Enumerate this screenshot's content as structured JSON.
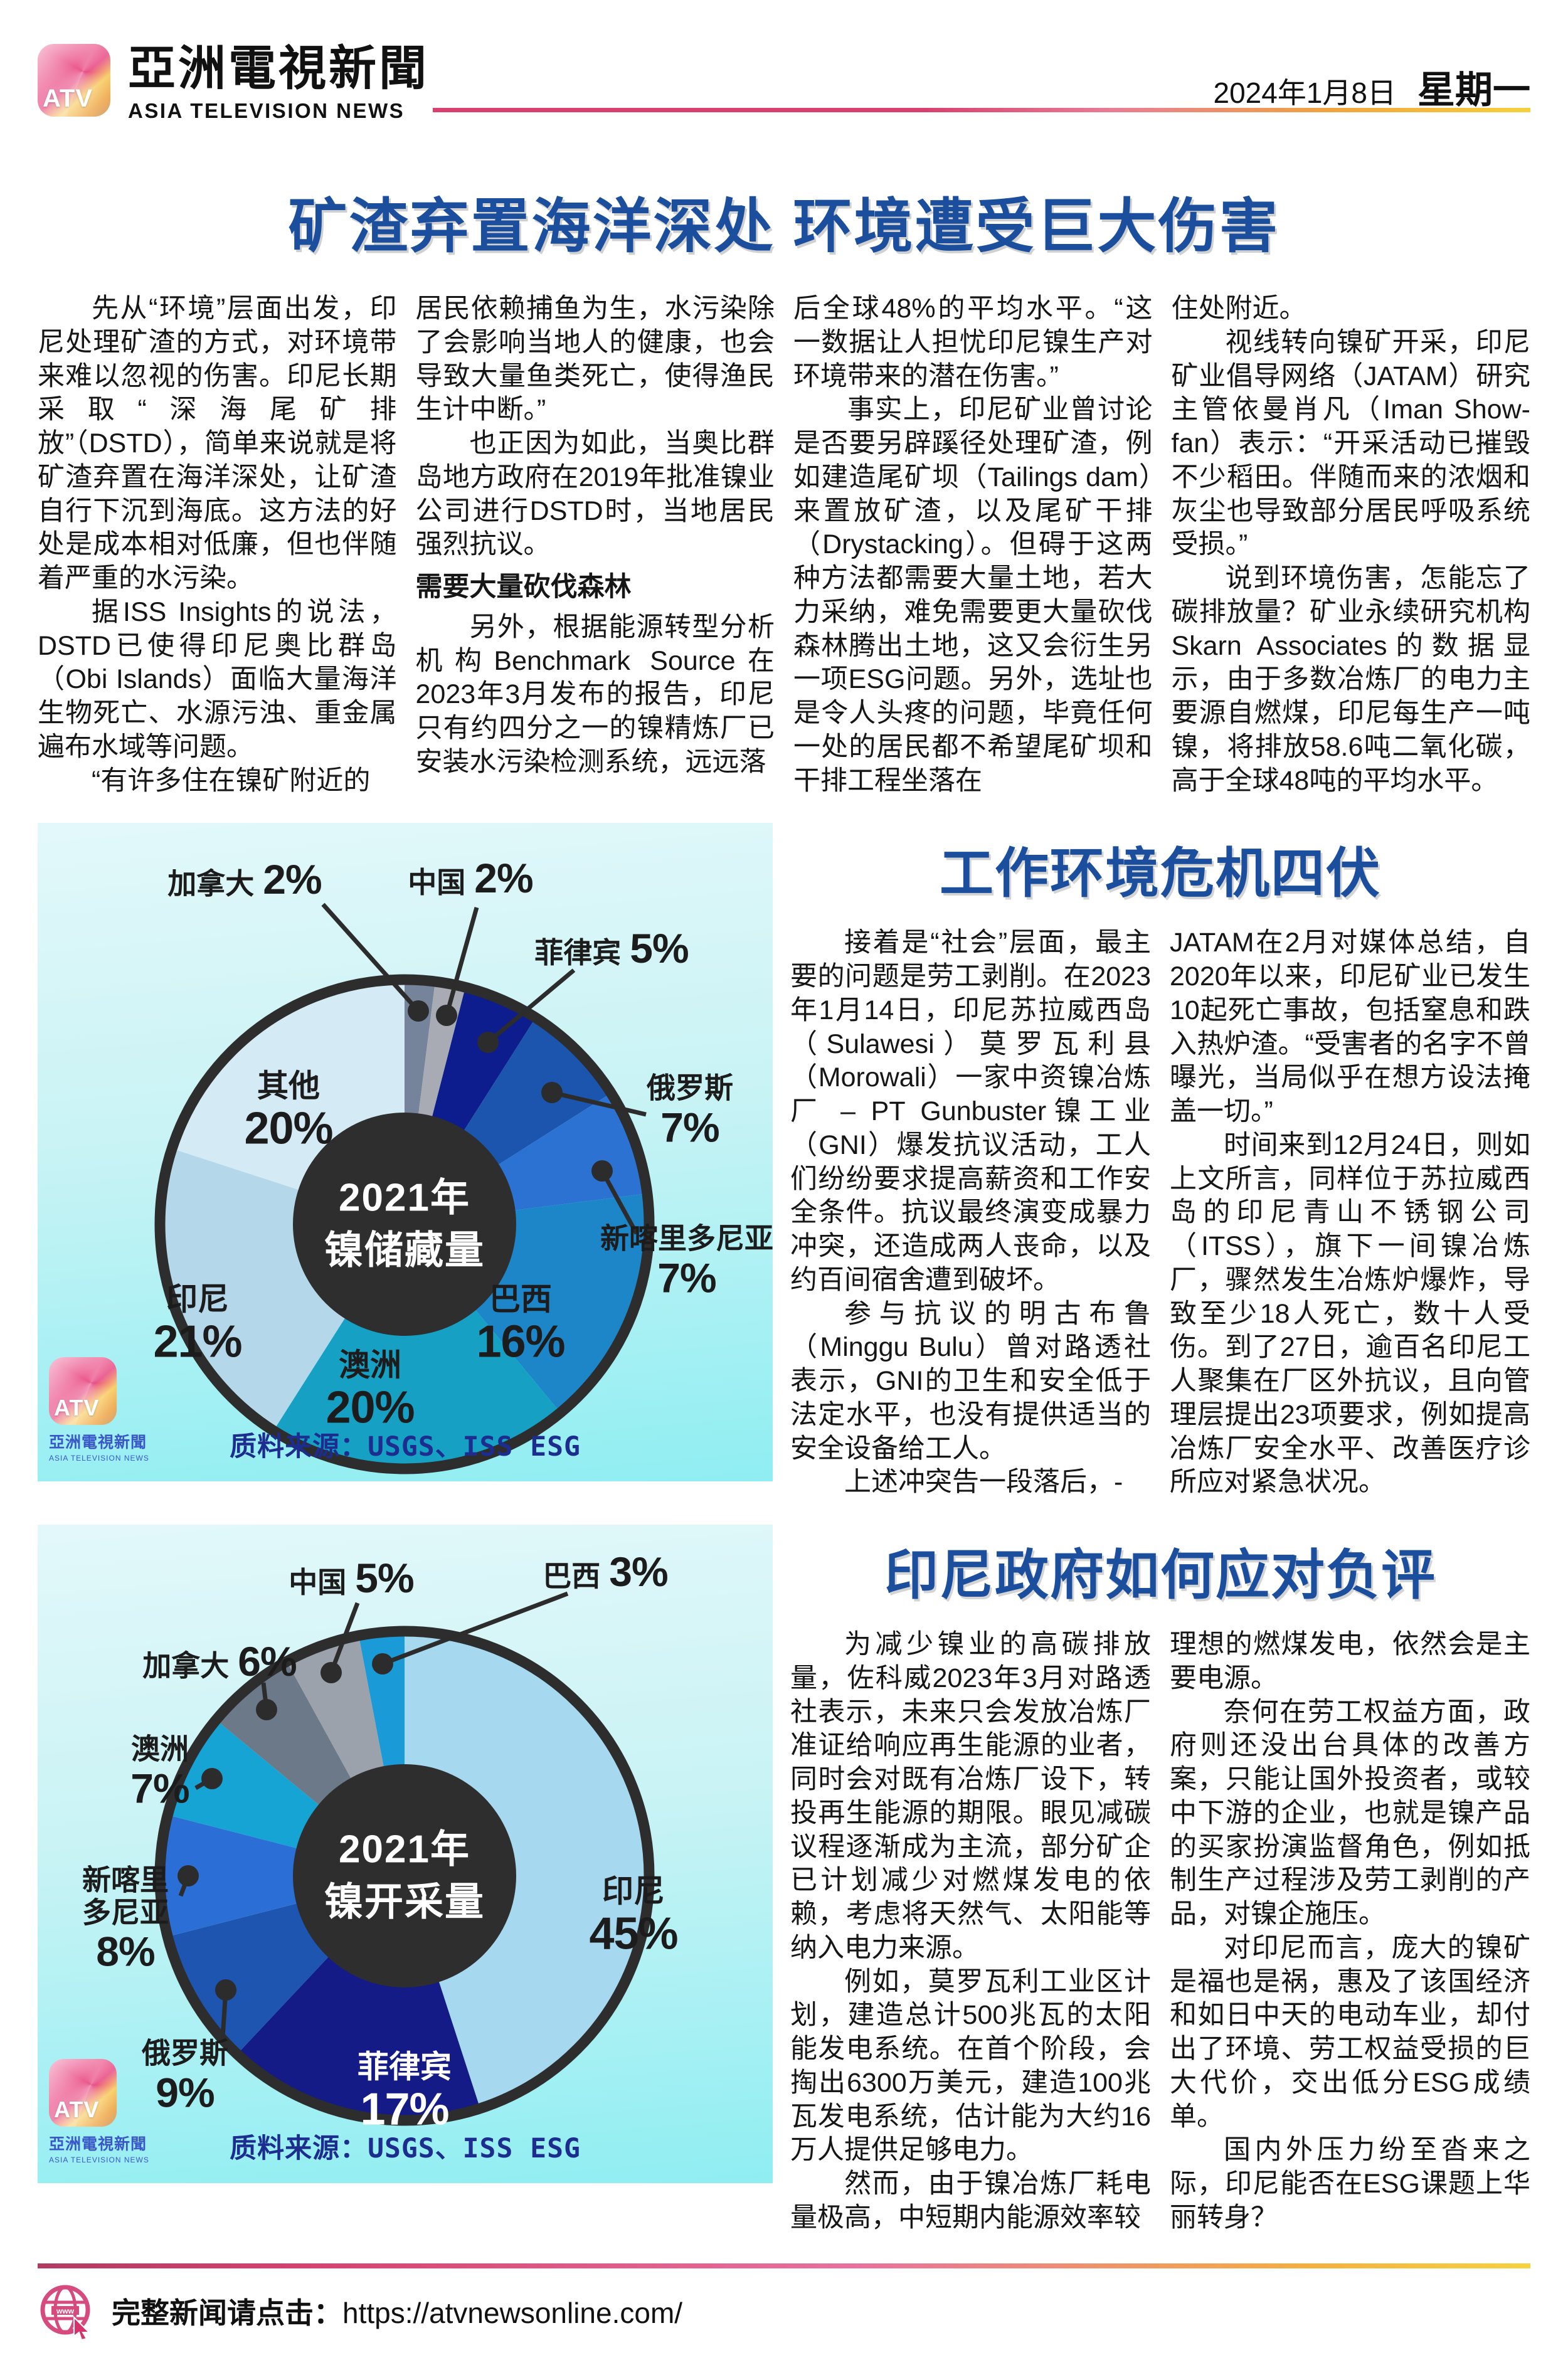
{
  "header": {
    "logo_text": "ATV",
    "brand_cn": "亞洲電視新聞",
    "brand_en": "ASIA TELEVISION NEWS",
    "date": "2024年1月8日",
    "weekday": "星期一"
  },
  "colors": {
    "headline_blue": "#1b4f9e",
    "subhead_blue": "#1a5cad",
    "source_blue": "#1c2d8f",
    "rule_pink": "#d8416f",
    "rule_yellow": "#f6d13c",
    "panel_cyan_top": "#e3f8fa",
    "panel_cyan_bottom": "#8feef2"
  },
  "article1": {
    "headline": "矿渣弃置海洋深处 环境遭受巨大伤害",
    "col1": [
      "先从“环境”层面出发，印尼处理矿渣的方式，对环境带来难以忽视的伤害。印尼长期采取“深海尾矿排放”（DSTD），简单来说就是将矿渣弃置在海洋深处，让矿渣自行下沉到海底。这方法的好处是成本相对低廉，但也伴随着严重的水污染。",
      "据ISS Insights的说法，DSTD已使得印尼奥比群岛（Obi Islands）面临大量海洋生物死亡、水源污浊、重金属遍布水域等问题。",
      "“有许多住在镍矿附近的"
    ],
    "col2_a": [
      "居民依赖捕鱼为生，水污染除了会影响当地人的健康，也会导致大量鱼类死亡，使得渔民生计中断。”",
      "也正因为如此，当奥比群岛地方政府在2019年批准镍业公司进行DSTD时，当地居民强烈抗议。"
    ],
    "col2_subhead": "需要大量砍伐森林",
    "col2_b": [
      "另外，根据能源转型分析机构Benchmark Source在2023年3月发布的报告，印尼只有约四分之一的镍精炼厂已安装水污染检测系统，远远落"
    ],
    "col3": [
      "后全球48%的平均水平。“这一数据让人担忧印尼镍生产对环境带来的潜在伤害。”",
      "事实上，印尼矿业曾讨论是否要另辟蹊径处理矿渣，例如建造尾矿坝（Tailings dam）来置放矿渣，以及尾矿干排（Drystacking）。但碍于这两种方法都需要大量土地，若大力采纳，难免需要更大量砍伐森林腾出土地，这又会衍生另一项ESG问题。另外，选址也是令人头疼的问题，毕竟任何一处的居民都不希望尾矿坝和干排工程坐落在"
    ],
    "col4": [
      "住处附近。",
      "视线转向镍矿开采，印尼矿业倡导网络（JATAM）研究主管依曼肖凡（Iman Show-fan）表示：“开采活动已摧毁不少稻田。伴随而来的浓烟和灰尘也导致部分居民呼吸系统受损。”",
      "说到环境伤害，怎能忘了碳排放量？矿业永续研究机构Skarn Associates的数据显示，由于多数冶炼厂的电力主要源自燃煤，印尼每生产一吨镍，将排放58.6吨二氧化碳，高于全球48吨的平均水平。"
    ]
  },
  "section2": {
    "headline": "工作环境危机四伏",
    "colA": [
      "接着是“社会”层面，最主要的问题是劳工剥削。在2023年1月14日，印尼苏拉威西岛（Sulawesi）莫罗瓦利县（Morowali）一家中资镍冶炼厂 – PT Gunbuster镍工业（GNI）爆发抗议活动，工人们纷纷要求提高薪资和工作安全条件。抗议最终演变成暴力冲突，还造成两人丧命，以及约百间宿舍遭到破坏。",
      "参与抗议的明古布鲁（Minggu Bulu）曾对路透社表示，GNI的卫生和安全低于法定水平，也没有提供适当的安全设备给工人。",
      "上述冲突告一段落后，-"
    ],
    "colB": [
      "JATAM在2月对媒体总结，自2020年以来，印尼矿业已发生10起死亡事故，包括窒息和跌入热炉渣。“受害者的名字不曾曝光，当局似乎在想方设法掩盖一切。”",
      "时间来到12月24日，则如上文所言，同样位于苏拉威西岛的印尼青山不锈钢公司（ITSS），旗下一间镍冶炼厂，骤然发生冶炼炉爆炸，导致至少18人死亡，数十人受伤。到了27日，逾百名印尼工人聚集在厂区外抗议，且向管理层提出23项要求，例如提高冶炼厂安全水平、改善医疗诊所应对紧急状况。"
    ]
  },
  "section3": {
    "headline": "印尼政府如何应对负评",
    "colA": [
      "为减少镍业的高碳排放量，佐科威2023年3月对路透社表示，未来只会发放冶炼厂准证给响应再生能源的业者，同时会对既有冶炼厂设下，转投再生能源的期限。眼见减碳议程逐渐成为主流，部分矿企已计划减少对燃煤发电的依赖，考虑将天然气、太阳能等纳入电力来源。",
      "例如，莫罗瓦利工业区计划，建造总计500兆瓦的太阳能发电系统。在首个阶段，会掏出6300万美元，建造100兆瓦发电系统，估计能为大约16万人提供足够电力。",
      "然而，由于镍冶炼厂耗电量极高，中短期内能源效率较"
    ],
    "colB": [
      "理想的燃煤发电，依然会是主要电源。",
      "奈何在劳工权益方面，政府则还没出台具体的改善方案，只能让国外投资者，或较中下游的企业，也就是镍产品的买家扮演监督角色，例如抵制生产过程涉及劳工剥削的产品，对镍企施压。",
      "对印尼而言，庞大的镍矿是福也是祸，惠及了该国经济和如日中天的电动车业，却付出了环境、劳工权益受损的巨大代价，交出低分ESG成绩单。",
      "国内外压力纷至沓来之际，印尼能否在ESG课题上华丽转身？"
    ]
  },
  "chart_data": [
    {
      "type": "pie",
      "title": "2021年",
      "subtitle": "镍储藏量",
      "source": "质料来源：USGS、ISS ESG",
      "legend_position": "around",
      "slices": [
        {
          "label": "加拿大",
          "pct": "2%",
          "value": 2,
          "color": "#76849b"
        },
        {
          "label": "中国",
          "pct": "2%",
          "value": 2,
          "color": "#a8abb4"
        },
        {
          "label": "菲律宾",
          "pct": "5%",
          "value": 5,
          "color": "#0d1d8e"
        },
        {
          "label": "俄罗斯",
          "pct": "7%",
          "value": 7,
          "color": "#1c55ae"
        },
        {
          "label": "新喀里多尼亚",
          "pct": "7%",
          "value": 7,
          "color": "#2b72d2"
        },
        {
          "label": "巴西",
          "pct": "16%",
          "value": 16,
          "color": "#1d86c9"
        },
        {
          "label": "澳洲",
          "pct": "20%",
          "value": 20,
          "color": "#16a1c4"
        },
        {
          "label": "印尼",
          "pct": "21%",
          "value": 21,
          "color": "#b4d8e9"
        },
        {
          "label": "其他",
          "pct": "20%",
          "value": 20,
          "color": "#d4eaf4"
        }
      ]
    },
    {
      "type": "pie",
      "title": "2021年",
      "subtitle": "镍开采量",
      "source": "质料来源：USGS、ISS ESG",
      "legend_position": "around",
      "slices": [
        {
          "label": "印尼",
          "pct": "45%",
          "value": 45,
          "color": "#a6d9f0"
        },
        {
          "label": "菲律宾",
          "pct": "17%",
          "value": 17,
          "color": "#141b86"
        },
        {
          "label": "俄罗斯",
          "pct": "9%",
          "value": 9,
          "color": "#1d55b0"
        },
        {
          "label": "新喀里",
          "label2": "多尼亚",
          "pct": "8%",
          "value": 8,
          "color": "#2b6fd6"
        },
        {
          "label": "澳洲",
          "pct": "7%",
          "value": 7,
          "color": "#16a4d4"
        },
        {
          "label": "加拿大",
          "pct": "6%",
          "value": 6,
          "color": "#6b7988"
        },
        {
          "label": "中国",
          "pct": "5%",
          "value": 5,
          "color": "#9ca2ac"
        },
        {
          "label": "巴西",
          "pct": "3%",
          "value": 3,
          "color": "#1b9ad8"
        }
      ]
    }
  ],
  "footer": {
    "label": "完整新闻请点击：",
    "url": "https://atvnewsonline.com/"
  }
}
